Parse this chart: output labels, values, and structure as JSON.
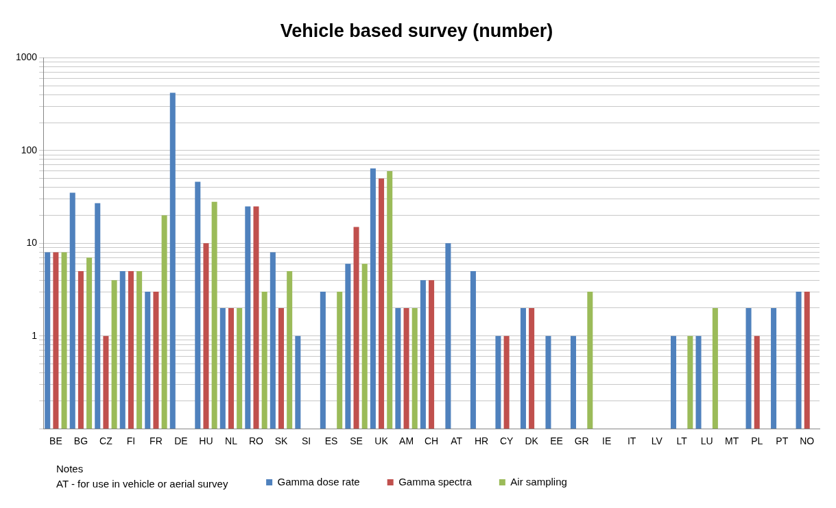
{
  "chart_data": {
    "type": "bar",
    "title": "Vehicle based survey (number)",
    "categories": [
      "BE",
      "BG",
      "CZ",
      "FI",
      "FR",
      "DE",
      "HU",
      "NL",
      "RO",
      "SK",
      "SI",
      "ES",
      "SE",
      "UK",
      "AM",
      "CH",
      "AT",
      "HR",
      "CY",
      "DK",
      "EE",
      "GR",
      "IE",
      "IT",
      "LV",
      "LT",
      "LU",
      "MT",
      "PL",
      "PT",
      "NO"
    ],
    "series": [
      {
        "name": "Gamma dose rate",
        "color": "#4f81bd",
        "values": [
          8,
          35,
          27,
          5,
          3,
          420,
          46,
          2,
          25,
          8,
          1,
          3,
          6,
          64,
          2,
          4,
          10,
          5,
          1,
          2,
          1,
          1,
          null,
          null,
          null,
          1,
          1,
          null,
          2,
          2,
          3
        ]
      },
      {
        "name": "Gamma spectra",
        "color": "#c0504d",
        "values": [
          8,
          5,
          1,
          5,
          3,
          null,
          10,
          2,
          25,
          2,
          null,
          null,
          15,
          50,
          2,
          4,
          null,
          null,
          1,
          2,
          null,
          null,
          null,
          null,
          null,
          null,
          null,
          null,
          1,
          null,
          3
        ]
      },
      {
        "name": "Air sampling",
        "color": "#9bbb59",
        "values": [
          8,
          7,
          4,
          5,
          20,
          null,
          28,
          2,
          3,
          5,
          null,
          3,
          6,
          60,
          2,
          null,
          null,
          null,
          null,
          null,
          null,
          3,
          null,
          null,
          null,
          1,
          2,
          null,
          null,
          null,
          null
        ]
      }
    ],
    "log": "y",
    "ylim": [
      0.1,
      1000
    ],
    "yticks": [
      {
        "value": 0.1,
        "label": null
      },
      {
        "value": 0.2,
        "label": null
      },
      {
        "value": 0.3,
        "label": null
      },
      {
        "value": 0.4,
        "label": null
      },
      {
        "value": 0.5,
        "label": null
      },
      {
        "value": 0.6,
        "label": null
      },
      {
        "value": 0.7,
        "label": null
      },
      {
        "value": 0.8,
        "label": null
      },
      {
        "value": 0.9,
        "label": null
      },
      1,
      {
        "value": 2,
        "label": null
      },
      {
        "value": 3,
        "label": null
      },
      {
        "value": 4,
        "label": null
      },
      {
        "value": 5,
        "label": null
      },
      {
        "value": 6,
        "label": null
      },
      {
        "value": 7,
        "label": null
      },
      {
        "value": 8,
        "label": null
      },
      {
        "value": 9,
        "label": null
      },
      10,
      {
        "value": 20,
        "label": null
      },
      {
        "value": 30,
        "label": null
      },
      {
        "value": 40,
        "label": null
      },
      {
        "value": 50,
        "label": null
      },
      {
        "value": 60,
        "label": null
      },
      {
        "value": 70,
        "label": null
      },
      {
        "value": 80,
        "label": null
      },
      {
        "value": 90,
        "label": null
      },
      100,
      {
        "value": 200,
        "label": null
      },
      {
        "value": 300,
        "label": null
      },
      {
        "value": 400,
        "label": null
      },
      {
        "value": 500,
        "label": null
      },
      {
        "value": 600,
        "label": null
      },
      {
        "value": 700,
        "label": null
      },
      {
        "value": 800,
        "label": null
      },
      {
        "value": 900,
        "label": null
      },
      1000
    ],
    "grid": "y",
    "legend": "bottom",
    "annotations": [
      "Notes\nAT - for use in vehicle or aerial survey"
    ]
  }
}
